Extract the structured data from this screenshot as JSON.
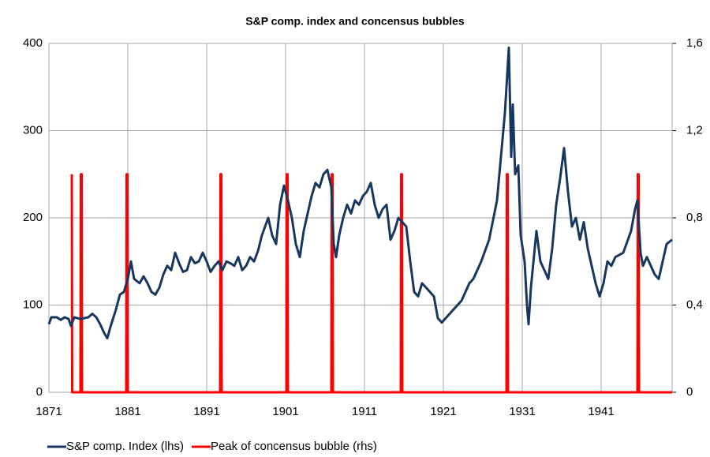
{
  "chart_data": {
    "type": "line",
    "title": "S&P comp. index and concensus bubbles",
    "xlim": [
      1871,
      1950
    ],
    "xticks": [
      1871,
      1881,
      1891,
      1901,
      1911,
      1921,
      1931,
      1941
    ],
    "ylim": [
      0,
      400
    ],
    "yticks": [
      0,
      100,
      200,
      300,
      400
    ],
    "y2lim": [
      0,
      1.6
    ],
    "y2ticks": [
      0,
      {
        "value": 0.4,
        "label": "0,4"
      },
      {
        "value": 0.8,
        "label": "0,8"
      },
      {
        "value": 1.2,
        "label": "1,2"
      },
      {
        "value": 1.6,
        "label": "1,6"
      }
    ],
    "grid": true,
    "legend": "bottom",
    "series": [
      {
        "name": "S&P comp. Index (lhs)",
        "color": "#17375e",
        "x": [
          1871,
          1871.3,
          1872,
          1872.5,
          1873,
          1873.5,
          1873.8,
          1874.2,
          1875,
          1876,
          1876.5,
          1877,
          1877.5,
          1878,
          1878.4,
          1878.8,
          1879.5,
          1880,
          1880.5,
          1881,
          1881.4,
          1881.8,
          1882.5,
          1883,
          1883.5,
          1884,
          1884.5,
          1885,
          1885.5,
          1886,
          1886.5,
          1887,
          1887.5,
          1888,
          1888.5,
          1889,
          1889.5,
          1890,
          1890.5,
          1891,
          1891.5,
          1892,
          1892.5,
          1893,
          1893.5,
          1894,
          1894.5,
          1895,
          1895.5,
          1896,
          1896.5,
          1897,
          1897.5,
          1898,
          1898.8,
          1899.3,
          1899.8,
          1900.3,
          1900.8,
          1901.3,
          1901.8,
          1902.3,
          1902.8,
          1903.3,
          1903.8,
          1904.3,
          1904.8,
          1905.3,
          1905.8,
          1906.3,
          1906.8,
          1907.1,
          1907.4,
          1907.8,
          1908.3,
          1908.8,
          1909.3,
          1909.8,
          1910.3,
          1910.8,
          1911.3,
          1911.8,
          1912.3,
          1912.8,
          1913.3,
          1913.8,
          1914.3,
          1914.8,
          1915.3,
          1915.8,
          1916.3,
          1916.8,
          1917.3,
          1917.8,
          1918.3,
          1918.8,
          1919.3,
          1919.8,
          1920.3,
          1920.8,
          1921.3,
          1921.8,
          1922.3,
          1922.8,
          1923.3,
          1923.8,
          1924.3,
          1924.8,
          1925.8,
          1926.8,
          1927.8,
          1928.3,
          1928.8,
          1929.3,
          1929.6,
          1929.8,
          1930.1,
          1930.5,
          1930.8,
          1931.3,
          1931.6,
          1931.8,
          1932.1,
          1932.8,
          1933.3,
          1933.8,
          1934.3,
          1934.8,
          1935.3,
          1935.8,
          1936.3,
          1936.8,
          1937.3,
          1937.8,
          1938.3,
          1938.8,
          1939.3,
          1940.3,
          1940.8,
          1941.3,
          1941.8,
          1942.3,
          1942.8,
          1943.8,
          1944.8,
          1945.3,
          1945.6,
          1946,
          1946.3,
          1946.8,
          1947.8,
          1948.3,
          1948.8,
          1949.3,
          1950
        ],
        "values": [
          78,
          86,
          86,
          83,
          86,
          84,
          76,
          86,
          84,
          86,
          90,
          86,
          78,
          68,
          62,
          75,
          95,
          112,
          115,
          130,
          150,
          130,
          125,
          133,
          125,
          115,
          112,
          120,
          135,
          145,
          140,
          160,
          148,
          138,
          140,
          155,
          148,
          150,
          160,
          150,
          138,
          145,
          150,
          140,
          150,
          148,
          145,
          155,
          140,
          145,
          155,
          150,
          162,
          180,
          200,
          180,
          170,
          215,
          237,
          220,
          200,
          170,
          155,
          185,
          205,
          225,
          240,
          235,
          250,
          255,
          235,
          170,
          155,
          180,
          200,
          215,
          205,
          220,
          215,
          225,
          230,
          240,
          215,
          200,
          210,
          215,
          175,
          185,
          200,
          195,
          190,
          150,
          115,
          110,
          125,
          120,
          115,
          110,
          85,
          80,
          85,
          90,
          95,
          100,
          105,
          115,
          125,
          130,
          150,
          175,
          220,
          270,
          320,
          395,
          270,
          330,
          250,
          260,
          180,
          150,
          100,
          78,
          120,
          185,
          150,
          140,
          130,
          165,
          215,
          245,
          280,
          230,
          190,
          200,
          175,
          195,
          165,
          125,
          110,
          125,
          150,
          145,
          155,
          160,
          185,
          210,
          220,
          160,
          145,
          155,
          135,
          130,
          150,
          170,
          175
        ]
      },
      {
        "name": "Peak of concensus bubble (rhs)",
        "color": "#ff0000",
        "axis": "y2",
        "x": [
          1873.9,
          1873.95,
          1875,
          1875.05,
          1875.15,
          1875.2,
          1880.8,
          1880.85,
          1880.95,
          1881,
          1892.7,
          1892.75,
          1892.85,
          1892.9,
          1901.1,
          1901.15,
          1901.25,
          1901.3,
          1906.8,
          1906.85,
          1906.95,
          1907,
          1915.6,
          1915.65,
          1915.75,
          1915.8,
          1929,
          1929.05,
          1929.15,
          1929.2,
          1945.6,
          1945.65,
          1945.75,
          1945.8,
          1950
        ],
        "values": [
          1,
          0,
          0,
          1,
          1,
          0,
          0,
          1,
          1,
          0,
          0,
          1,
          1,
          0,
          0,
          1,
          1,
          0,
          0,
          1,
          1,
          0,
          0,
          1,
          1,
          0,
          0,
          1,
          1,
          0,
          0,
          1,
          1,
          0,
          0
        ]
      }
    ]
  }
}
